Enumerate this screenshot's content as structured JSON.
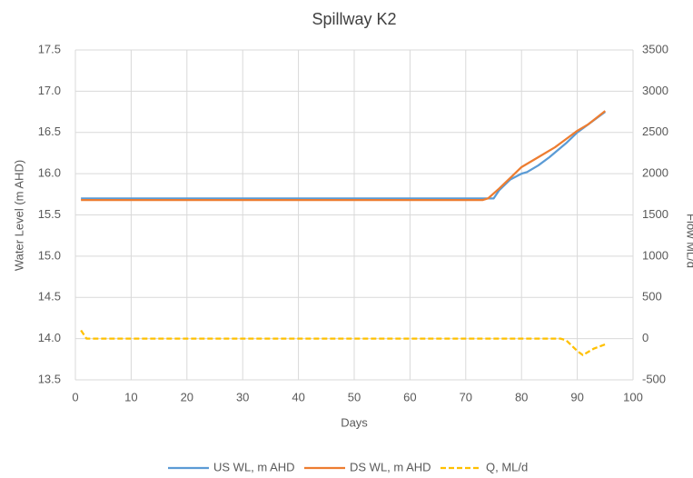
{
  "chart_data": {
    "type": "line",
    "title": "Spillway K2",
    "x_label": "Days",
    "y_label": "Water Level (m AHD)",
    "y2_label": "Flow ML/d",
    "xlim": [
      0,
      100
    ],
    "xticks": [
      0,
      10,
      20,
      30,
      40,
      50,
      60,
      70,
      80,
      90,
      100
    ],
    "ylim": [
      13.5,
      17.5
    ],
    "yticks": [
      13.5,
      {
        "value": 14,
        "label": "14.0"
      },
      14.5,
      {
        "value": 15,
        "label": "15.0"
      },
      15.5,
      {
        "value": 16,
        "label": "16.0"
      },
      16.5,
      {
        "value": 17,
        "label": "17.0"
      },
      17.5
    ],
    "y2lim": [
      -500,
      3500
    ],
    "y2ticks": [
      -500,
      0,
      500,
      1000,
      1500,
      2000,
      2500,
      3000,
      3500
    ],
    "grid": true,
    "legend": "bottom",
    "series": [
      {
        "name": "US WL, m AHD",
        "color": "#5b9bd5",
        "dash": false,
        "x": [
          1,
          75,
          76,
          78,
          80,
          81,
          83,
          85,
          88,
          90,
          92,
          95
        ],
        "values": [
          15.7,
          15.7,
          15.8,
          15.93,
          16.0,
          16.02,
          16.1,
          16.2,
          16.37,
          16.5,
          16.6,
          16.75
        ]
      },
      {
        "name": "DS WL, m AHD",
        "color": "#ed7d31",
        "dash": false,
        "x": [
          1,
          73,
          74,
          76,
          78,
          80,
          83,
          86,
          88,
          90,
          92,
          95
        ],
        "values": [
          15.68,
          15.68,
          15.7,
          15.82,
          15.95,
          16.08,
          16.2,
          16.32,
          16.42,
          16.52,
          16.6,
          16.76
        ]
      },
      {
        "name": "Q, ML/d",
        "color": "#ffc000",
        "dash": true,
        "axis": "y2",
        "x": [
          1,
          2,
          87,
          88,
          90,
          91,
          93,
          95
        ],
        "values": [
          100,
          0,
          0,
          -20,
          -150,
          -200,
          -120,
          -70
        ]
      }
    ]
  }
}
